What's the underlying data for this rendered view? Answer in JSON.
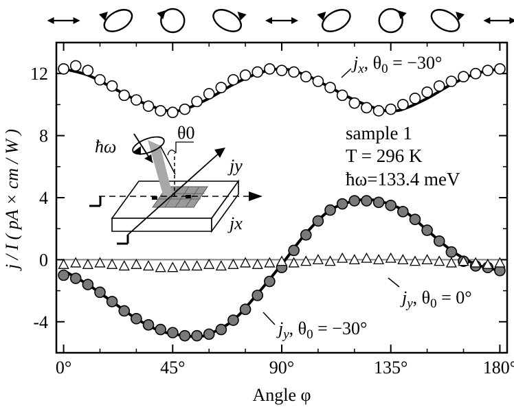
{
  "chart_data": {
    "type": "scatter",
    "xlabel": "Angle φ",
    "ylabel": "j / I  ( pA × cm / W )",
    "xlim": [
      -3,
      183
    ],
    "ylim": [
      -6,
      14
    ],
    "x_ticks": [
      0,
      45,
      90,
      135,
      180
    ],
    "x_tick_labels": [
      "0°",
      "45°",
      "90°",
      "135°",
      "180°"
    ],
    "y_ticks": [
      -4,
      0,
      4,
      8,
      12
    ],
    "y_tick_labels": [
      "-4",
      "0",
      "4",
      "8",
      "12"
    ],
    "grid": false,
    "legend": "none",
    "colors": {
      "open_marker_fill": "#ffffff",
      "filled_marker_fill": "#7a7a7a",
      "fit_line": "#000000",
      "zero_line": "#808080"
    },
    "polarization_icons": [
      "linear-horizontal-icon",
      "elliptical-left-icon",
      "circular-left-icon",
      "elliptical-right-icon",
      "linear-horizontal-icon",
      "elliptical-left-icon",
      "circular-right-icon",
      "elliptical-right-icon",
      "linear-horizontal-icon"
    ],
    "sample_info": [
      "sample 1",
      "T = 296 K",
      "ħω=133.4 meV"
    ],
    "inset_labels": {
      "hbar_omega": "ħω",
      "theta0": "θ0",
      "jy": "jy",
      "jx": "jx"
    },
    "series": [
      {
        "name": "jx, θ0 = −30°",
        "label_main": "j",
        "label_sub": "x",
        "label_rest": ", θ",
        "label_sub2": "0",
        "label_tail": " = −30°",
        "marker": "open-circle",
        "x": [
          0,
          5,
          10,
          15,
          20,
          25,
          30,
          35,
          40,
          45,
          50,
          55,
          60,
          65,
          70,
          75,
          80,
          85,
          90,
          95,
          100,
          105,
          110,
          115,
          120,
          125,
          130,
          135,
          140,
          145,
          150,
          155,
          160,
          165,
          170,
          175,
          180
        ],
        "y": [
          12.3,
          12.5,
          12.2,
          11.6,
          11.2,
          10.6,
          10.3,
          9.9,
          9.6,
          9.5,
          9.7,
          10.2,
          10.7,
          11.1,
          11.6,
          11.9,
          12.1,
          12.3,
          12.2,
          12.1,
          11.8,
          11.5,
          11.1,
          10.6,
          10.1,
          9.8,
          9.6,
          9.7,
          10.0,
          10.4,
          10.8,
          11.2,
          11.5,
          11.8,
          12.0,
          12.2,
          12.3
        ]
      },
      {
        "name": "jx fit",
        "type": "line",
        "x": [
          0,
          10,
          20,
          30,
          40,
          45,
          50,
          60,
          70,
          80,
          90,
          100,
          110,
          120,
          130,
          135,
          140,
          150,
          160,
          170,
          180
        ],
        "y": [
          12.3,
          11.9,
          11.1,
          10.3,
          9.7,
          9.6,
          9.7,
          10.4,
          11.3,
          12.0,
          12.3,
          11.9,
          11.1,
          10.3,
          9.7,
          9.6,
          9.7,
          10.4,
          11.3,
          12.0,
          12.3
        ]
      },
      {
        "name": "jy, θ0 = −30°",
        "label_main": "j",
        "label_sub": "y",
        "label_rest": ", θ",
        "label_sub2": "0",
        "label_tail": " = −30°",
        "marker": "filled-circle",
        "x": [
          0,
          5,
          10,
          15,
          20,
          25,
          30,
          35,
          40,
          45,
          50,
          55,
          60,
          65,
          70,
          75,
          80,
          85,
          90,
          95,
          100,
          105,
          110,
          115,
          120,
          125,
          130,
          135,
          140,
          145,
          150,
          155,
          160,
          165,
          170,
          175,
          180
        ],
        "y": [
          -1.0,
          -1.2,
          -1.6,
          -2.1,
          -2.7,
          -3.3,
          -3.8,
          -4.2,
          -4.5,
          -4.7,
          -4.9,
          -4.9,
          -4.8,
          -4.5,
          -3.9,
          -3.2,
          -2.3,
          -1.4,
          -0.5,
          0.6,
          1.6,
          2.5,
          3.2,
          3.6,
          3.8,
          3.8,
          3.7,
          3.5,
          3.1,
          2.6,
          1.9,
          1.2,
          0.5,
          -0.1,
          -0.4,
          -0.5,
          -0.7
        ]
      },
      {
        "name": "jy fit",
        "type": "line",
        "x": [
          0,
          10,
          20,
          30,
          40,
          50,
          55,
          60,
          70,
          80,
          90,
          100,
          110,
          120,
          125,
          130,
          140,
          150,
          160,
          170,
          180
        ],
        "y": [
          -0.7,
          -1.6,
          -2.7,
          -3.8,
          -4.6,
          -4.9,
          -4.95,
          -4.8,
          -3.9,
          -2.2,
          -0.3,
          1.7,
          3.2,
          3.8,
          3.85,
          3.8,
          3.2,
          1.9,
          0.6,
          -0.3,
          -0.7
        ]
      },
      {
        "name": "jy, θ0 = 0°",
        "label_main": "j",
        "label_sub": "y",
        "label_rest": ", θ",
        "label_sub2": "0",
        "label_tail": " = 0°",
        "marker": "open-triangle",
        "x": [
          0,
          5,
          10,
          15,
          20,
          25,
          30,
          35,
          40,
          45,
          50,
          55,
          60,
          65,
          70,
          75,
          80,
          85,
          90,
          95,
          100,
          105,
          110,
          115,
          120,
          125,
          130,
          135,
          140,
          145,
          150,
          155,
          160,
          165,
          170,
          175,
          180
        ],
        "y": [
          -0.3,
          -0.2,
          -0.3,
          -0.2,
          -0.3,
          -0.4,
          -0.3,
          -0.4,
          -0.5,
          -0.5,
          -0.4,
          -0.4,
          -0.3,
          -0.4,
          -0.3,
          -0.2,
          -0.3,
          -0.2,
          -0.1,
          -0.2,
          -0.1,
          0.0,
          -0.1,
          0.1,
          0.0,
          0.1,
          0.0,
          0.1,
          0.0,
          -0.1,
          0.0,
          -0.1,
          -0.2,
          -0.1,
          -0.2,
          -0.3,
          -0.2
        ]
      }
    ]
  }
}
